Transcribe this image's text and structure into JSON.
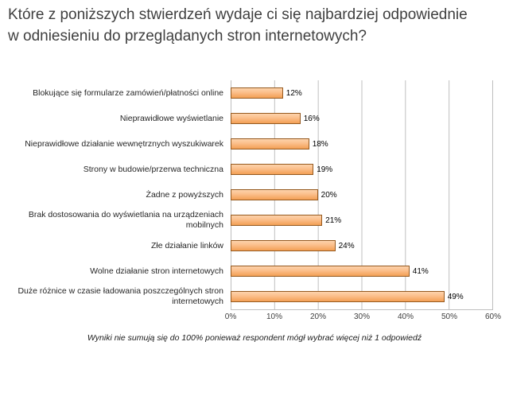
{
  "header": {
    "title": "Które z poniższych stwierdzeń wydaje ci się najbardziej odpowiednie w odniesieniu do przeglądanych stron internetowych?"
  },
  "chart_data": {
    "type": "bar",
    "orientation": "horizontal",
    "title": "",
    "xlabel": "",
    "ylabel": "",
    "xlim": [
      0,
      60
    ],
    "grid": true,
    "categories": [
      "Blokujące się formularze zamówień/płatności online",
      "Nieprawidłowe wyświetlanie",
      "Nieprawidłowe działanie wewnętrznych wyszukiwarek",
      "Strony w budowie/przerwa techniczna",
      "Żadne z powyższych",
      "Brak dostosowania do wyświetlania na urządzeniach mobilnych",
      "Złe działanie linków",
      "Wolne działanie stron internetowych",
      "Duże różnice w czasie ładowania poszczególnych stron internetowych"
    ],
    "values": [
      12,
      16,
      18,
      19,
      20,
      21,
      24,
      41,
      49
    ],
    "value_labels": [
      "12%",
      "16%",
      "18%",
      "19%",
      "20%",
      "21%",
      "24%",
      "41%",
      "49%"
    ],
    "xticks": [
      "0%",
      "10%",
      "20%",
      "30%",
      "40%",
      "50%",
      "60%"
    ],
    "colors": {
      "bar": "#FBBE8A",
      "bar_top": "#FDD3AC",
      "bar_bottom": "#F3A055",
      "bar_border": "#95591F",
      "gridline": "#BFBFBF",
      "title_text": "#3F3F3F"
    }
  },
  "footnote": "Wyniki nie sumują się do 100% ponieważ respondent mógł wybrać więcej niż 1 odpowiedź"
}
